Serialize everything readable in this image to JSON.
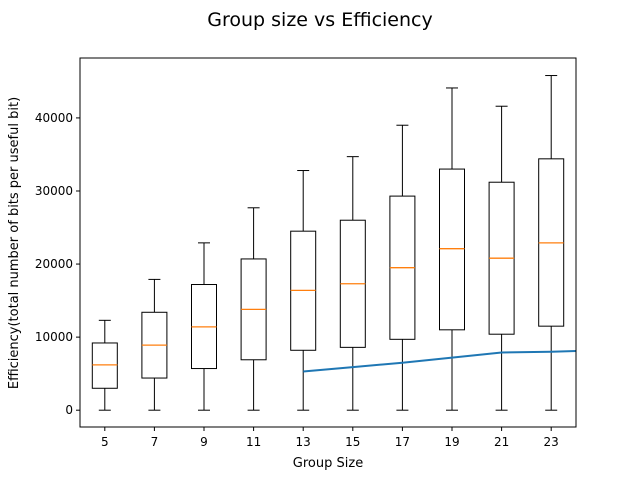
{
  "chart_data": {
    "type": "box",
    "title": "Group size vs Efficiency",
    "xlabel": "Group Size",
    "ylabel": "Efficiency(total number of bits per useful bit)",
    "categories": [
      "5",
      "7",
      "9",
      "11",
      "13",
      "15",
      "17",
      "19",
      "21",
      "23"
    ],
    "yticks": [
      0,
      10000,
      20000,
      30000,
      40000
    ],
    "ylim": [
      -2300,
      48200
    ],
    "grid": false,
    "boxes": [
      {
        "category": "5",
        "whisker_low": 0,
        "q1": 3000,
        "median": 6200,
        "q3": 9200,
        "whisker_high": 12300
      },
      {
        "category": "7",
        "whisker_low": 0,
        "q1": 4400,
        "median": 8900,
        "q3": 13400,
        "whisker_high": 17900
      },
      {
        "category": "9",
        "whisker_low": 0,
        "q1": 5700,
        "median": 11400,
        "q3": 17200,
        "whisker_high": 22900
      },
      {
        "category": "11",
        "whisker_low": 0,
        "q1": 6900,
        "median": 13800,
        "q3": 20700,
        "whisker_high": 27700
      },
      {
        "category": "13",
        "whisker_low": 0,
        "q1": 8200,
        "median": 16400,
        "q3": 24500,
        "whisker_high": 32800
      },
      {
        "category": "15",
        "whisker_low": 0,
        "q1": 8600,
        "median": 17300,
        "q3": 26000,
        "whisker_high": 34700
      },
      {
        "category": "17",
        "whisker_low": 0,
        "q1": 9700,
        "median": 19500,
        "q3": 29300,
        "whisker_high": 39000
      },
      {
        "category": "19",
        "whisker_low": 0,
        "q1": 11000,
        "median": 22100,
        "q3": 33000,
        "whisker_high": 44100
      },
      {
        "category": "21",
        "whisker_low": 0,
        "q1": 10400,
        "median": 20800,
        "q3": 31200,
        "whisker_high": 41600
      },
      {
        "category": "23",
        "whisker_low": 0,
        "q1": 11500,
        "median": 22900,
        "q3": 34400,
        "whisker_high": 45800
      }
    ],
    "series": [
      {
        "x": [
          "13",
          "15",
          "17",
          "19",
          "21",
          "23",
          "24"
        ],
        "values": [
          5300,
          5900,
          6500,
          7200,
          7900,
          8000,
          8100
        ],
        "color": "#1f77b4"
      }
    ],
    "colors": {
      "box": "#000000",
      "median": "#ff7f0e",
      "line": "#1f77b4"
    }
  }
}
